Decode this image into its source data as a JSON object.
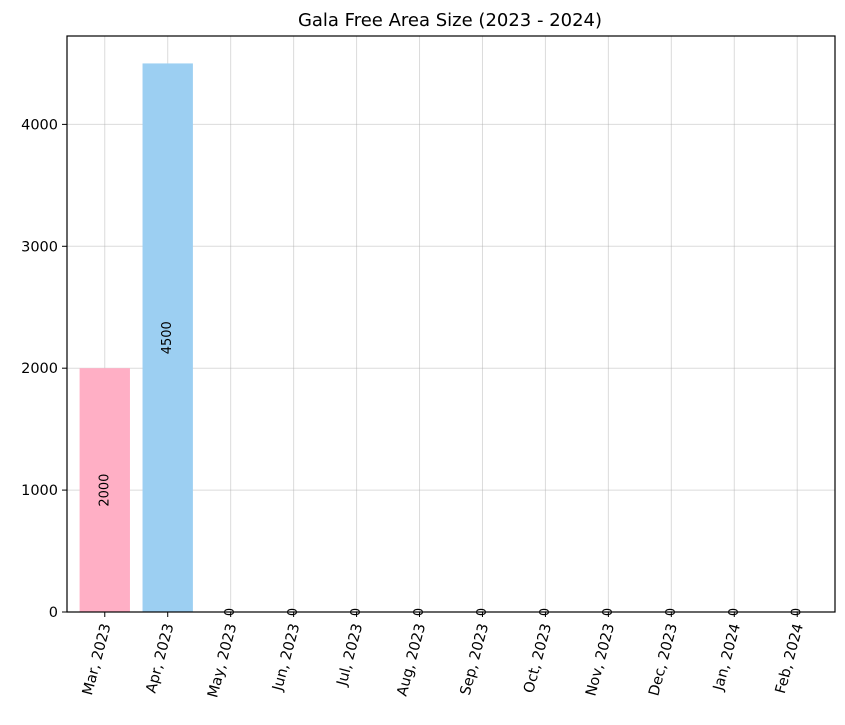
{
  "chart_data": {
    "type": "bar",
    "title": "Gala Free Area Size (2023 - 2024)",
    "xlabel": "",
    "ylabel": "",
    "categories": [
      "Mar, 2023",
      "Apr, 2023",
      "May, 2023",
      "Jun, 2023",
      "Jul, 2023",
      "Aug, 2023",
      "Sep, 2023",
      "Oct, 2023",
      "Nov, 2023",
      "Dec, 2023",
      "Jan, 2024",
      "Feb, 2024"
    ],
    "values": [
      2000,
      4500,
      0,
      0,
      0,
      0,
      0,
      0,
      0,
      0,
      0,
      0
    ],
    "value_labels": [
      "2000",
      "4500",
      "0",
      "0",
      "0",
      "0",
      "0",
      "0",
      "0",
      "0",
      "0",
      "0"
    ],
    "bar_colors": [
      "#ffafc5",
      "#9ccff2",
      "#ffafc5",
      "#9ccff2",
      "#ffafc5",
      "#9ccff2",
      "#ffafc5",
      "#9ccff2",
      "#ffafc5",
      "#9ccff2",
      "#ffafc5",
      "#9ccff2"
    ],
    "yticks": [
      0,
      1000,
      2000,
      3000,
      4000
    ],
    "ytick_labels": [
      "0",
      "1000",
      "2000",
      "3000",
      "4000"
    ],
    "ylim": [
      0,
      4725
    ],
    "grid": true,
    "legend": "none"
  }
}
